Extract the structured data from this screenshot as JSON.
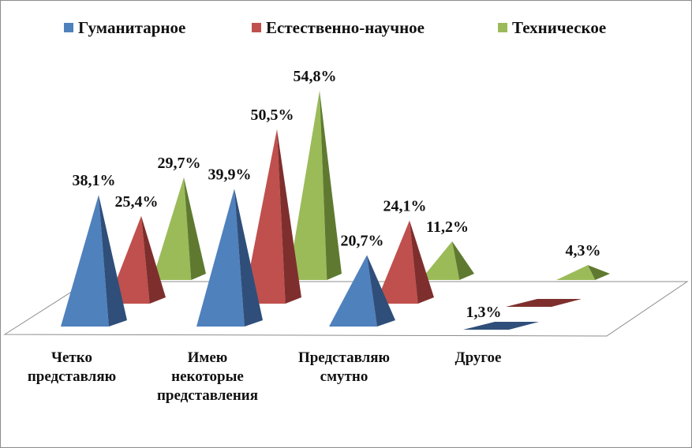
{
  "chart_data": {
    "type": "bar",
    "title": "",
    "xlabel": "",
    "ylabel": "",
    "ylim": [
      0,
      60
    ],
    "categories": [
      [
        "Четко",
        "представляю"
      ],
      [
        "Имею",
        "некоторые",
        "представления"
      ],
      [
        "Представляю",
        "смутно"
      ],
      [
        "Другое"
      ]
    ],
    "series": [
      {
        "name": "Гуманитарное",
        "color": "#4F81BD",
        "dark": "#2F4F7A",
        "values": [
          38.1,
          39.9,
          20.7,
          1.3
        ],
        "labels": [
          "38,1%",
          "39,9%",
          "20,7%",
          "1,3%"
        ]
      },
      {
        "name": "Естественно-научное",
        "color": "#C0504D",
        "dark": "#7E2F2D",
        "values": [
          25.4,
          50.5,
          24.1,
          0.0
        ],
        "labels": [
          "25,4%",
          "50,5%",
          "24,1%",
          ""
        ]
      },
      {
        "name": "Техническое",
        "color": "#9BBB59",
        "dark": "#5F7A30",
        "values": [
          29.7,
          54.8,
          11.2,
          4.3
        ],
        "labels": [
          "29,7%",
          "54,8%",
          "11,2%",
          "4,3%"
        ]
      }
    ],
    "legend_position": "top",
    "grid": false
  }
}
